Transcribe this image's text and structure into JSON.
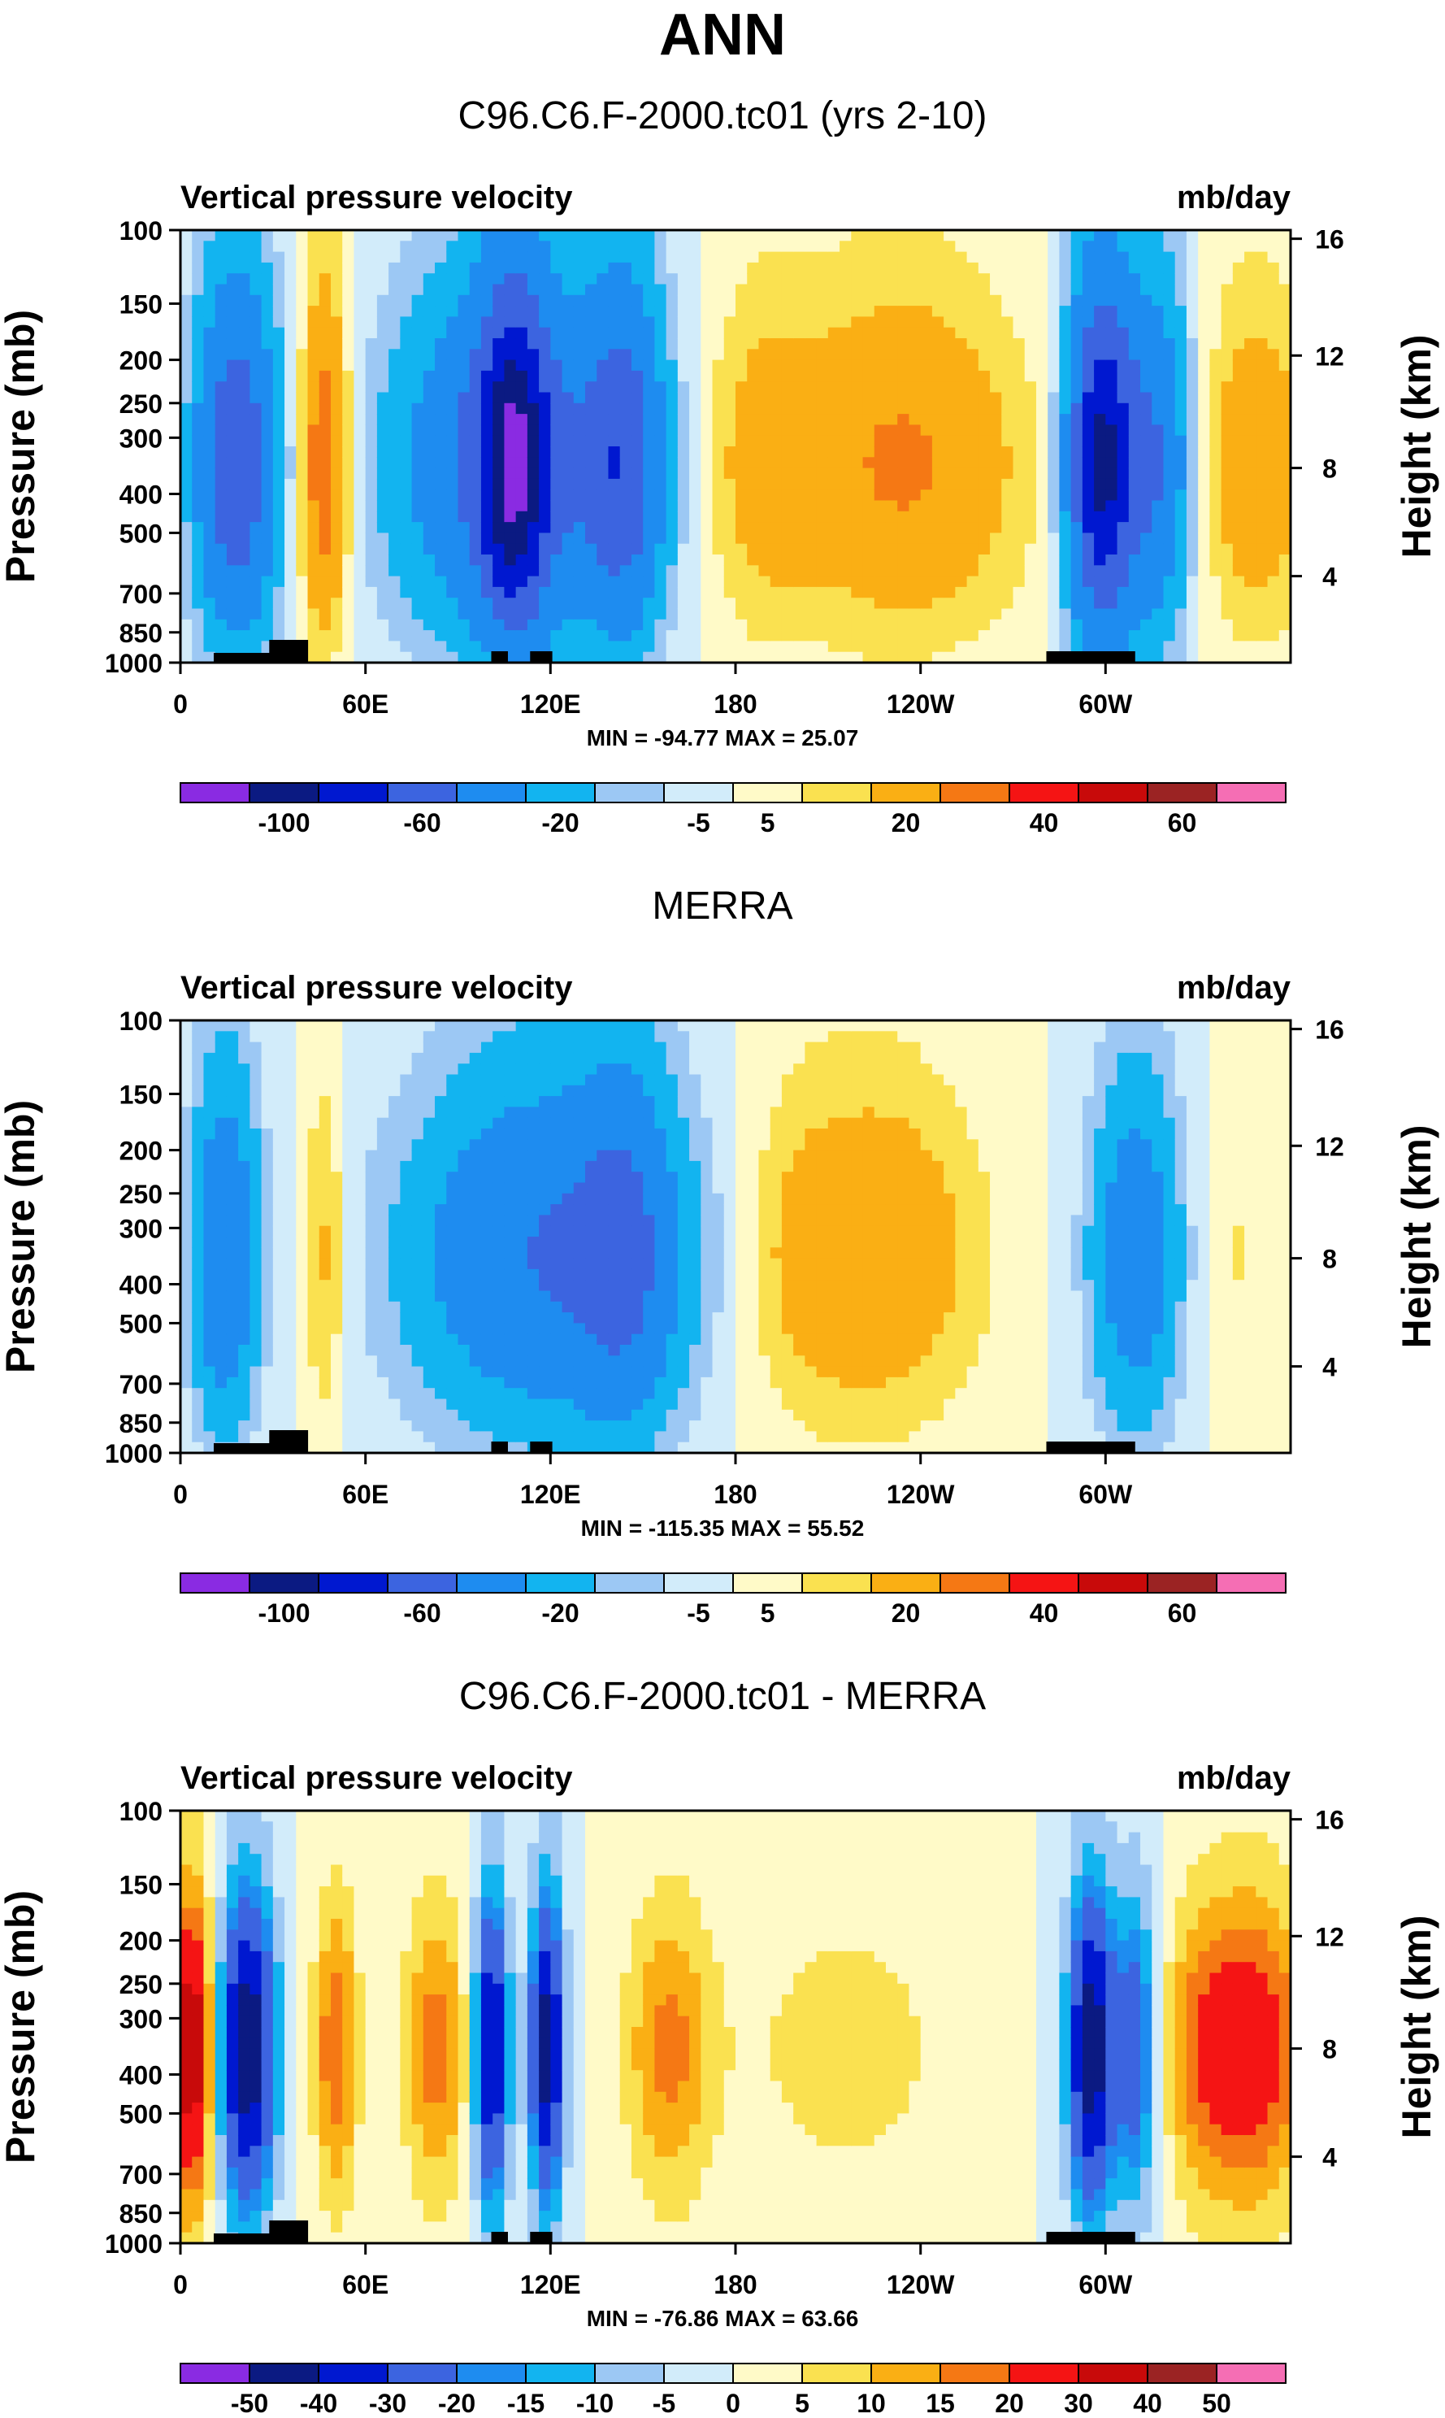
{
  "title": "ANN",
  "chart_data": [
    {
      "type": "heatmap",
      "title": "C96.C6.F-2000.tc01 (yrs 2-10)",
      "left_label": "Vertical pressure velocity",
      "right_label": "mb/day",
      "ylabel": "Pressure (mb)",
      "ylabel_right": "Height (km)",
      "x_ticks": [
        "0",
        "60E",
        "120E",
        "180",
        "120W",
        "60W"
      ],
      "y_ticks": [
        "100",
        "150",
        "200",
        "250",
        "300",
        "400",
        "500",
        "700",
        "850",
        "1000"
      ],
      "y_ticks_right": [
        "16",
        "12",
        "8",
        "4"
      ],
      "stats": "MIN = -94.77  MAX = 25.07",
      "colorbar_labels": [
        "-100",
        "-60",
        "-20",
        "-5",
        "5",
        "20",
        "40",
        "60"
      ]
    },
    {
      "type": "heatmap",
      "title": "MERRA",
      "left_label": "Vertical pressure velocity",
      "right_label": "mb/day",
      "ylabel": "Pressure (mb)",
      "ylabel_right": "Height (km)",
      "x_ticks": [
        "0",
        "60E",
        "120E",
        "180",
        "120W",
        "60W"
      ],
      "y_ticks": [
        "100",
        "150",
        "200",
        "250",
        "300",
        "400",
        "500",
        "700",
        "850",
        "1000"
      ],
      "y_ticks_right": [
        "16",
        "12",
        "8",
        "4"
      ],
      "stats": "MIN = -115.35  MAX = 55.52",
      "colorbar_labels": [
        "-100",
        "-60",
        "-20",
        "-5",
        "5",
        "20",
        "40",
        "60"
      ]
    },
    {
      "type": "heatmap",
      "title": "C96.C6.F-2000.tc01 - MERRA",
      "left_label": "Vertical pressure velocity",
      "right_label": "mb/day",
      "ylabel": "Pressure (mb)",
      "ylabel_right": "Height (km)",
      "x_ticks": [
        "0",
        "60E",
        "120E",
        "180",
        "120W",
        "60W"
      ],
      "y_ticks": [
        "100",
        "150",
        "200",
        "250",
        "300",
        "400",
        "500",
        "700",
        "850",
        "1000"
      ],
      "y_ticks_right": [
        "16",
        "12",
        "8",
        "4"
      ],
      "stats": "MIN = -76.86  MAX = 63.66",
      "colorbar_labels": [
        "-50",
        "-40",
        "-30",
        "-20",
        "-15",
        "-10",
        "-5",
        "0",
        "5",
        "10",
        "15",
        "20",
        "30",
        "40",
        "50"
      ]
    }
  ],
  "colors": {
    "palette": [
      "#8a2be2",
      "#0b1a82",
      "#0018d0",
      "#3c64e0",
      "#1e8cf0",
      "#12b4f0",
      "#9cc8f4",
      "#d2ecfa",
      "#fffac8",
      "#fae150",
      "#faaf14",
      "#f57814",
      "#f51414",
      "#c80a0a",
      "#9b2323",
      "#f56eb4"
    ]
  }
}
